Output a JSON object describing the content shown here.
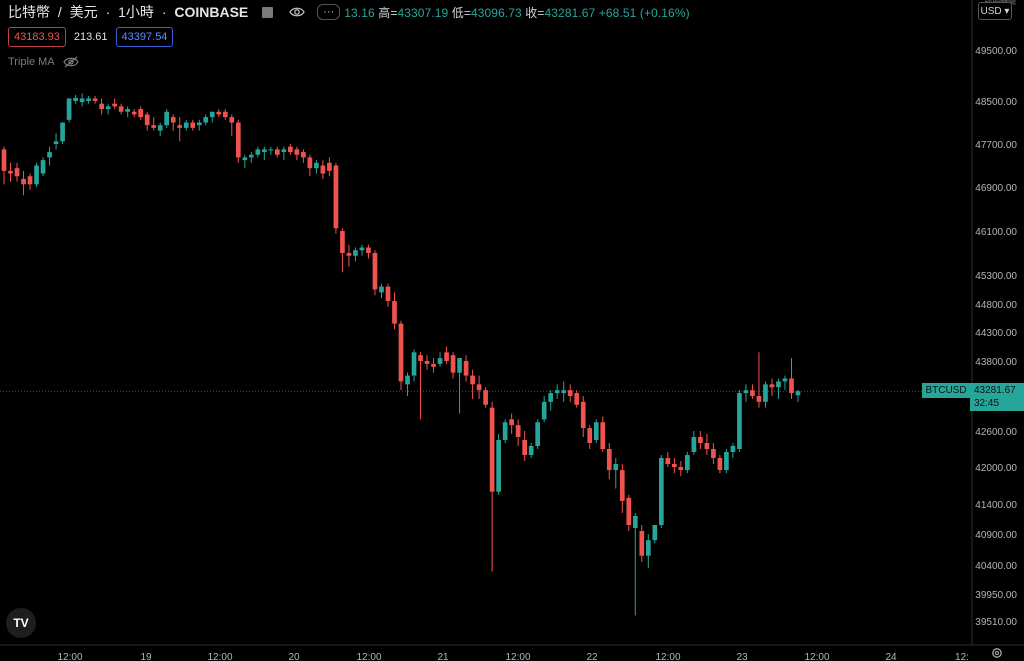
{
  "header": {
    "symbol": "比特幣",
    "sep": "/",
    "quote": "美元",
    "interval": "1小時",
    "exchange": "COINBASE",
    "more_label": "···"
  },
  "ohlc": {
    "open_tail": "13.16",
    "high_label": "高=",
    "high": "43307.19",
    "low_label": "低=",
    "low": "43096.73",
    "close_label": "收=",
    "close": "43281.67",
    "change": "+68.51 (+0.16%)"
  },
  "quote_boxes": {
    "bid": "43183.93",
    "spread": "213.61",
    "ask": "43397.54"
  },
  "indicator": {
    "name": "Triple MA"
  },
  "axis": {
    "currency": "USD",
    "corner_text": "到期時間"
  },
  "price_tag": {
    "symbol": "BTCUSD",
    "price": "43281.67",
    "countdown": "32:45"
  },
  "logo_text": "TV",
  "colors": {
    "up": "#26a69a",
    "down": "#ef5350",
    "background": "#000000",
    "axis_text": "#b2b5be"
  },
  "chart_data": {
    "type": "candlestick",
    "ylim": [
      39300,
      49900
    ],
    "y_ticks": [
      49500,
      48500,
      47700,
      46900,
      46100,
      45300,
      44800,
      44300,
      43800,
      42600,
      42000,
      41400,
      40900,
      40400,
      39950,
      39510
    ],
    "x_tick_labels": [
      "12:00",
      "19",
      "12:00",
      "20",
      "12:00",
      "21",
      "12:00",
      "22",
      "12:00",
      "23",
      "12:00",
      "24",
      "12:"
    ],
    "current_price": 43281.67,
    "candles": [
      {
        "o": 47600,
        "h": 47650,
        "l": 46950,
        "c": 47200
      },
      {
        "o": 47200,
        "h": 47350,
        "l": 47000,
        "c": 47150
      },
      {
        "o": 47250,
        "h": 47350,
        "l": 47000,
        "c": 47100
      },
      {
        "o": 47050,
        "h": 47200,
        "l": 46750,
        "c": 46950
      },
      {
        "o": 47100,
        "h": 47150,
        "l": 46850,
        "c": 46950
      },
      {
        "o": 46950,
        "h": 47350,
        "l": 46900,
        "c": 47300
      },
      {
        "o": 47150,
        "h": 47450,
        "l": 47100,
        "c": 47400
      },
      {
        "o": 47450,
        "h": 47650,
        "l": 47300,
        "c": 47550
      },
      {
        "o": 47700,
        "h": 47900,
        "l": 47600,
        "c": 47750
      },
      {
        "o": 47750,
        "h": 48100,
        "l": 47700,
        "c": 48100
      },
      {
        "o": 48150,
        "h": 48550,
        "l": 48100,
        "c": 48550
      },
      {
        "o": 48500,
        "h": 48620,
        "l": 48450,
        "c": 48560
      },
      {
        "o": 48480,
        "h": 48650,
        "l": 48400,
        "c": 48550
      },
      {
        "o": 48500,
        "h": 48600,
        "l": 48450,
        "c": 48550
      },
      {
        "o": 48550,
        "h": 48600,
        "l": 48450,
        "c": 48500
      },
      {
        "o": 48450,
        "h": 48550,
        "l": 48250,
        "c": 48350
      },
      {
        "o": 48350,
        "h": 48450,
        "l": 48250,
        "c": 48400
      },
      {
        "o": 48450,
        "h": 48550,
        "l": 48350,
        "c": 48400
      },
      {
        "o": 48400,
        "h": 48450,
        "l": 48250,
        "c": 48300
      },
      {
        "o": 48300,
        "h": 48400,
        "l": 48200,
        "c": 48350
      },
      {
        "o": 48300,
        "h": 48350,
        "l": 48200,
        "c": 48250
      },
      {
        "o": 48350,
        "h": 48400,
        "l": 48150,
        "c": 48200
      },
      {
        "o": 48250,
        "h": 48300,
        "l": 47950,
        "c": 48050
      },
      {
        "o": 48050,
        "h": 48200,
        "l": 47950,
        "c": 48000
      },
      {
        "o": 47950,
        "h": 48100,
        "l": 47850,
        "c": 48050
      },
      {
        "o": 48050,
        "h": 48350,
        "l": 48000,
        "c": 48300
      },
      {
        "o": 48200,
        "h": 48250,
        "l": 47950,
        "c": 48100
      },
      {
        "o": 48050,
        "h": 48200,
        "l": 47750,
        "c": 48000
      },
      {
        "o": 48000,
        "h": 48150,
        "l": 47950,
        "c": 48100
      },
      {
        "o": 48100,
        "h": 48150,
        "l": 47950,
        "c": 48000
      },
      {
        "o": 48050,
        "h": 48150,
        "l": 47950,
        "c": 48100
      },
      {
        "o": 48100,
        "h": 48250,
        "l": 48050,
        "c": 48200
      },
      {
        "o": 48200,
        "h": 48300,
        "l": 48100,
        "c": 48300
      },
      {
        "o": 48300,
        "h": 48350,
        "l": 48200,
        "c": 48250
      },
      {
        "o": 48300,
        "h": 48350,
        "l": 48150,
        "c": 48200
      },
      {
        "o": 48200,
        "h": 48250,
        "l": 47850,
        "c": 48100
      },
      {
        "o": 48100,
        "h": 48150,
        "l": 47350,
        "c": 47450
      },
      {
        "o": 47400,
        "h": 47500,
        "l": 47250,
        "c": 47450
      },
      {
        "o": 47450,
        "h": 47550,
        "l": 47350,
        "c": 47500
      },
      {
        "o": 47500,
        "h": 47650,
        "l": 47450,
        "c": 47600
      },
      {
        "o": 47550,
        "h": 47650,
        "l": 47400,
        "c": 47600
      },
      {
        "o": 47600,
        "h": 47650,
        "l": 47500,
        "c": 47600
      },
      {
        "o": 47600,
        "h": 47650,
        "l": 47450,
        "c": 47500
      },
      {
        "o": 47550,
        "h": 47650,
        "l": 47400,
        "c": 47600
      },
      {
        "o": 47650,
        "h": 47700,
        "l": 47500,
        "c": 47550
      },
      {
        "o": 47600,
        "h": 47650,
        "l": 47400,
        "c": 47500
      },
      {
        "o": 47550,
        "h": 47600,
        "l": 47350,
        "c": 47450
      },
      {
        "o": 47450,
        "h": 47500,
        "l": 47100,
        "c": 47250
      },
      {
        "o": 47250,
        "h": 47400,
        "l": 47150,
        "c": 47350
      },
      {
        "o": 47300,
        "h": 47400,
        "l": 47050,
        "c": 47150
      },
      {
        "o": 47350,
        "h": 47450,
        "l": 47100,
        "c": 47200
      },
      {
        "o": 47300,
        "h": 47350,
        "l": 46050,
        "c": 46150
      },
      {
        "o": 46100,
        "h": 46150,
        "l": 45350,
        "c": 45700
      },
      {
        "o": 45700,
        "h": 45850,
        "l": 45450,
        "c": 45650
      },
      {
        "o": 45650,
        "h": 45800,
        "l": 45550,
        "c": 45750
      },
      {
        "o": 45750,
        "h": 45850,
        "l": 45650,
        "c": 45800
      },
      {
        "o": 45800,
        "h": 45850,
        "l": 45600,
        "c": 45700
      },
      {
        "o": 45700,
        "h": 45750,
        "l": 44950,
        "c": 45050
      },
      {
        "o": 45000,
        "h": 45150,
        "l": 44900,
        "c": 45100
      },
      {
        "o": 45100,
        "h": 45150,
        "l": 44750,
        "c": 44850
      },
      {
        "o": 44850,
        "h": 45000,
        "l": 44350,
        "c": 44450
      },
      {
        "o": 44450,
        "h": 44500,
        "l": 43300,
        "c": 43450
      },
      {
        "o": 43400,
        "h": 43600,
        "l": 43200,
        "c": 43550
      },
      {
        "o": 43550,
        "h": 44000,
        "l": 43450,
        "c": 43950
      },
      {
        "o": 43900,
        "h": 43950,
        "l": 42800,
        "c": 43800
      },
      {
        "o": 43800,
        "h": 43900,
        "l": 43650,
        "c": 43750
      },
      {
        "o": 43750,
        "h": 43850,
        "l": 43600,
        "c": 43700
      },
      {
        "o": 43750,
        "h": 43950,
        "l": 43700,
        "c": 43850
      },
      {
        "o": 43950,
        "h": 44050,
        "l": 43750,
        "c": 43800
      },
      {
        "o": 43900,
        "h": 43950,
        "l": 43500,
        "c": 43600
      },
      {
        "o": 43600,
        "h": 43850,
        "l": 42900,
        "c": 43850
      },
      {
        "o": 43800,
        "h": 43900,
        "l": 43450,
        "c": 43550
      },
      {
        "o": 43550,
        "h": 43650,
        "l": 43150,
        "c": 43400
      },
      {
        "o": 43400,
        "h": 43550,
        "l": 43150,
        "c": 43300
      },
      {
        "o": 43300,
        "h": 43350,
        "l": 43000,
        "c": 43050
      },
      {
        "o": 43000,
        "h": 43100,
        "l": 40300,
        "c": 41600
      },
      {
        "o": 41600,
        "h": 42550,
        "l": 41550,
        "c": 42450
      },
      {
        "o": 42450,
        "h": 42800,
        "l": 42400,
        "c": 42750
      },
      {
        "o": 42800,
        "h": 42900,
        "l": 42550,
        "c": 42700
      },
      {
        "o": 42700,
        "h": 42800,
        "l": 42350,
        "c": 42500
      },
      {
        "o": 42450,
        "h": 42600,
        "l": 42100,
        "c": 42200
      },
      {
        "o": 42200,
        "h": 42400,
        "l": 42150,
        "c": 42350
      },
      {
        "o": 42350,
        "h": 42800,
        "l": 42300,
        "c": 42750
      },
      {
        "o": 42800,
        "h": 43200,
        "l": 42750,
        "c": 43100
      },
      {
        "o": 43100,
        "h": 43300,
        "l": 42950,
        "c": 43250
      },
      {
        "o": 43250,
        "h": 43400,
        "l": 43150,
        "c": 43300
      },
      {
        "o": 43250,
        "h": 43450,
        "l": 43100,
        "c": 43300
      },
      {
        "o": 43300,
        "h": 43400,
        "l": 43100,
        "c": 43200
      },
      {
        "o": 43250,
        "h": 43300,
        "l": 43000,
        "c": 43050
      },
      {
        "o": 43100,
        "h": 43200,
        "l": 42500,
        "c": 42650
      },
      {
        "o": 42650,
        "h": 42700,
        "l": 42300,
        "c": 42400
      },
      {
        "o": 42450,
        "h": 42800,
        "l": 42400,
        "c": 42750
      },
      {
        "o": 42750,
        "h": 42850,
        "l": 42250,
        "c": 42300
      },
      {
        "o": 42300,
        "h": 42400,
        "l": 41800,
        "c": 41950
      },
      {
        "o": 41950,
        "h": 42150,
        "l": 41650,
        "c": 42050
      },
      {
        "o": 41950,
        "h": 42050,
        "l": 41250,
        "c": 41450
      },
      {
        "o": 41500,
        "h": 41550,
        "l": 40950,
        "c": 41050
      },
      {
        "o": 41000,
        "h": 41250,
        "l": 39600,
        "c": 41200
      },
      {
        "o": 40950,
        "h": 41050,
        "l": 40450,
        "c": 40550
      },
      {
        "o": 40550,
        "h": 40900,
        "l": 40350,
        "c": 40800
      },
      {
        "o": 40800,
        "h": 41050,
        "l": 40750,
        "c": 41050
      },
      {
        "o": 41050,
        "h": 42200,
        "l": 41000,
        "c": 42150
      },
      {
        "o": 42150,
        "h": 42250,
        "l": 42000,
        "c": 42050
      },
      {
        "o": 42050,
        "h": 42150,
        "l": 41900,
        "c": 42000
      },
      {
        "o": 42000,
        "h": 42100,
        "l": 41850,
        "c": 41950
      },
      {
        "o": 41950,
        "h": 42250,
        "l": 41900,
        "c": 42200
      },
      {
        "o": 42250,
        "h": 42600,
        "l": 42200,
        "c": 42500
      },
      {
        "o": 42500,
        "h": 42600,
        "l": 42300,
        "c": 42400
      },
      {
        "o": 42400,
        "h": 42550,
        "l": 42200,
        "c": 42300
      },
      {
        "o": 42300,
        "h": 42400,
        "l": 42050,
        "c": 42150
      },
      {
        "o": 42150,
        "h": 42200,
        "l": 41900,
        "c": 41950
      },
      {
        "o": 41950,
        "h": 42300,
        "l": 41900,
        "c": 42250
      },
      {
        "o": 42250,
        "h": 42400,
        "l": 42150,
        "c": 42350
      },
      {
        "o": 42300,
        "h": 43300,
        "l": 42250,
        "c": 43250
      },
      {
        "o": 43250,
        "h": 43400,
        "l": 43100,
        "c": 43300
      },
      {
        "o": 43300,
        "h": 43400,
        "l": 43150,
        "c": 43200
      },
      {
        "o": 43200,
        "h": 43950,
        "l": 43000,
        "c": 43100
      },
      {
        "o": 43100,
        "h": 43450,
        "l": 43000,
        "c": 43400
      },
      {
        "o": 43400,
        "h": 43500,
        "l": 43200,
        "c": 43350
      },
      {
        "o": 43350,
        "h": 43500,
        "l": 43150,
        "c": 43450
      },
      {
        "o": 43450,
        "h": 43550,
        "l": 43300,
        "c": 43500
      },
      {
        "o": 43500,
        "h": 43850,
        "l": 43150,
        "c": 43250
      },
      {
        "o": 43213,
        "h": 43307,
        "l": 43097,
        "c": 43282
      }
    ]
  }
}
